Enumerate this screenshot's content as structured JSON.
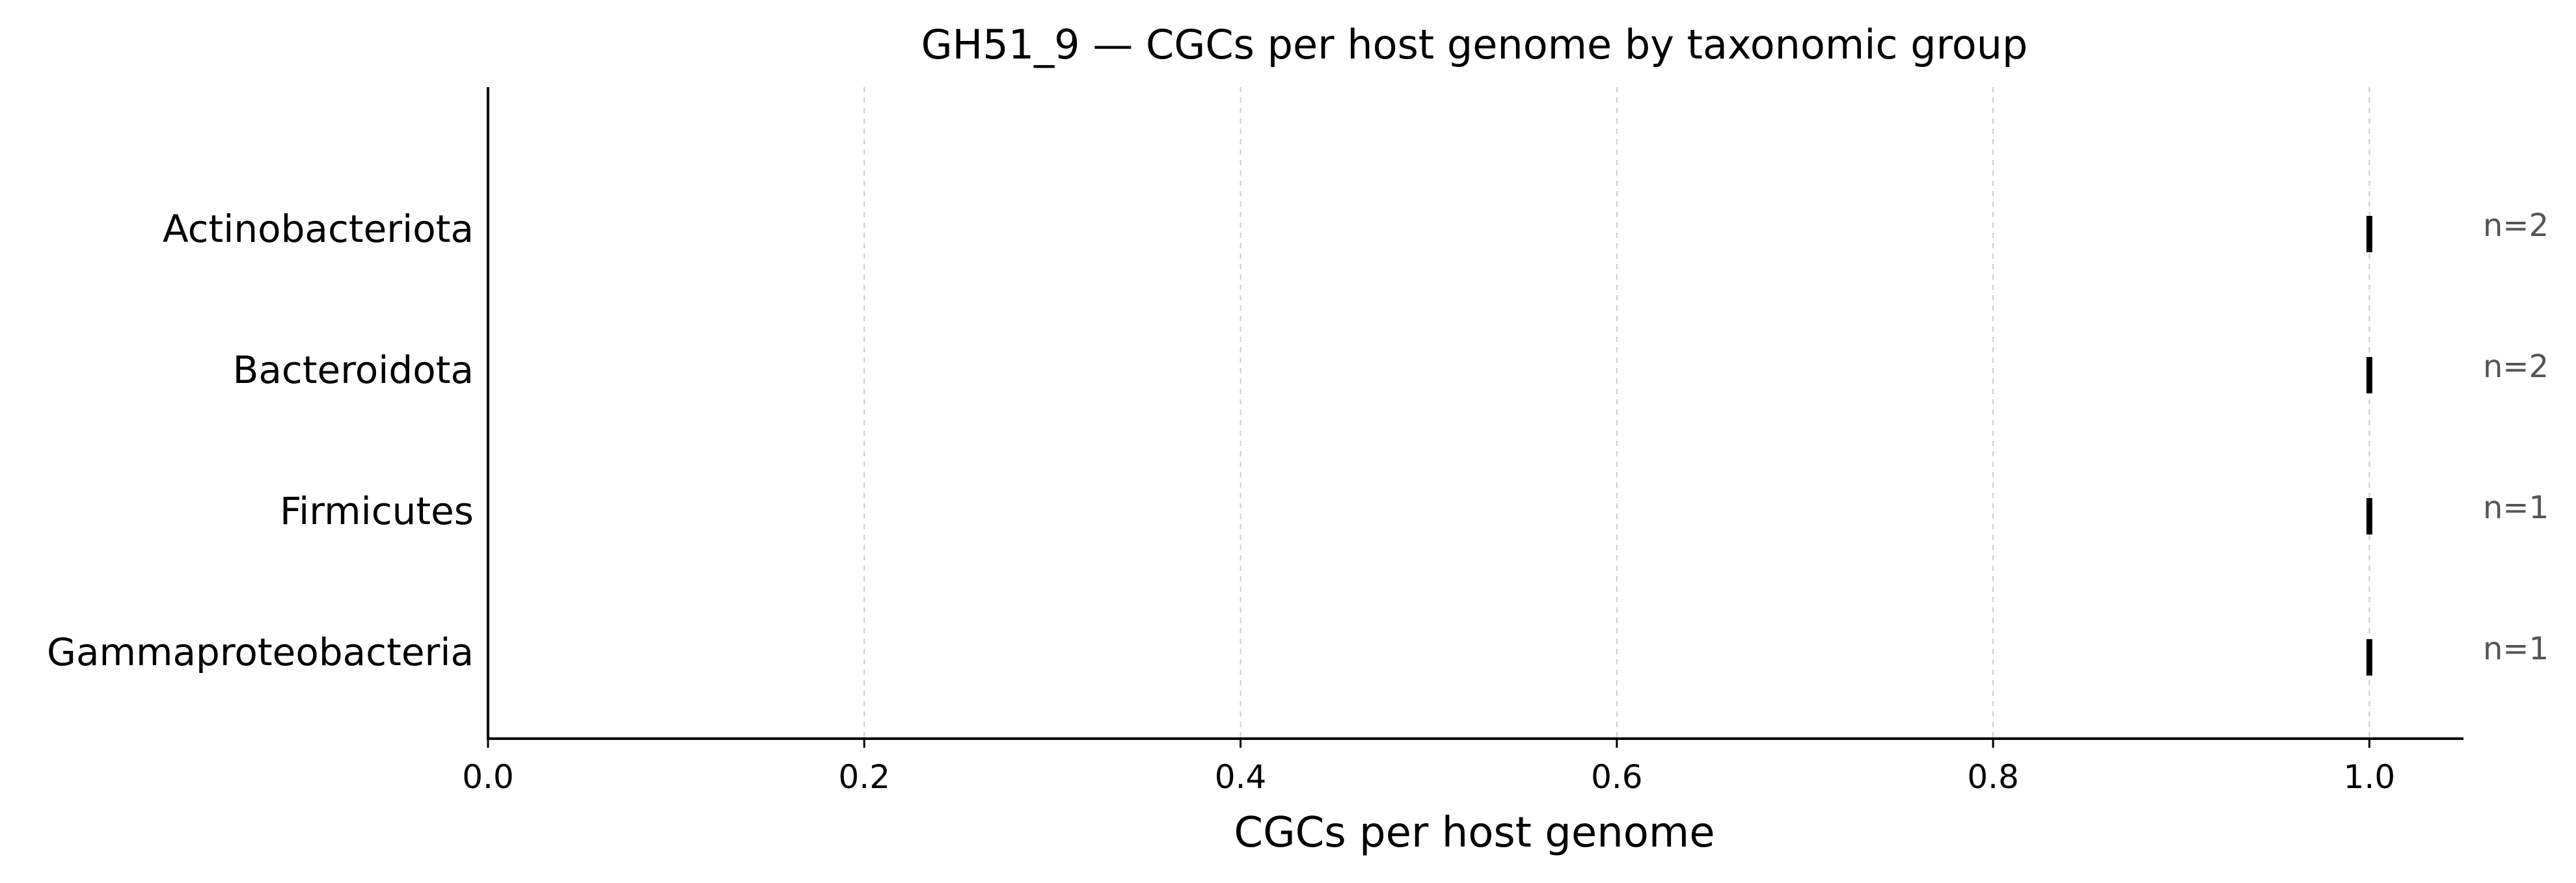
{
  "chart_data": {
    "type": "scatter",
    "title": "GH51_9 — CGCs per host genome by taxonomic group",
    "xlabel": "CGCs per host genome",
    "ylabel": "",
    "xlim": [
      0,
      1.05
    ],
    "x_ticks": [
      "0.0",
      "0.2",
      "0.4",
      "0.6",
      "0.8",
      "1.0"
    ],
    "categories": [
      "Actinobacteriota",
      "Bacteroidota",
      "Firmicutes",
      "Gammaproteobacteria"
    ],
    "values": [
      1.0,
      1.0,
      1.0,
      1.0
    ],
    "counts": [
      "n=2",
      "n=2",
      "n=1",
      "n=1"
    ],
    "grid": true,
    "legend": "none"
  }
}
